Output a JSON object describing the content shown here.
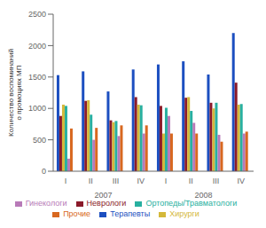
{
  "chart_data": {
    "type": "bar",
    "categories": [
      "I",
      "II",
      "III",
      "IV",
      "I",
      "II",
      "III",
      "IV"
    ],
    "series": [
      {
        "name": "Терапевты",
        "color": "#1c4fc0",
        "values": [
          1530,
          1590,
          1270,
          1620,
          1700,
          1750,
          1540,
          2200
        ]
      },
      {
        "name": "Неврологи",
        "color": "#8b1a2a",
        "values": [
          880,
          1120,
          810,
          1180,
          1040,
          1170,
          1090,
          1410
        ]
      },
      {
        "name": "Хирурги",
        "color": "#d4b83a",
        "values": [
          1060,
          1130,
          780,
          1060,
          600,
          1180,
          1000,
          1060
        ]
      },
      {
        "name": "Ортопеды/Травматологи",
        "color": "#28b0a0",
        "values": [
          1040,
          900,
          800,
          1050,
          1010,
          960,
          1090,
          1070
        ]
      },
      {
        "name": "Гинекологи",
        "color": "#b87ab8",
        "values": [
          200,
          500,
          560,
          600,
          880,
          770,
          580,
          600
        ]
      },
      {
        "name": "Прочие",
        "color": "#d86820",
        "values": [
          680,
          690,
          730,
          730,
          600,
          600,
          470,
          630
        ]
      }
    ],
    "ylabel": "Количество воспоминаний\nо промоциях МП",
    "annotations": [
      "2007",
      "2008"
    ],
    "ylim": [
      0,
      2500
    ],
    "yticks": [
      0,
      500,
      1000,
      1500,
      2000,
      2500
    ],
    "grid": false,
    "legend": "bottom"
  }
}
